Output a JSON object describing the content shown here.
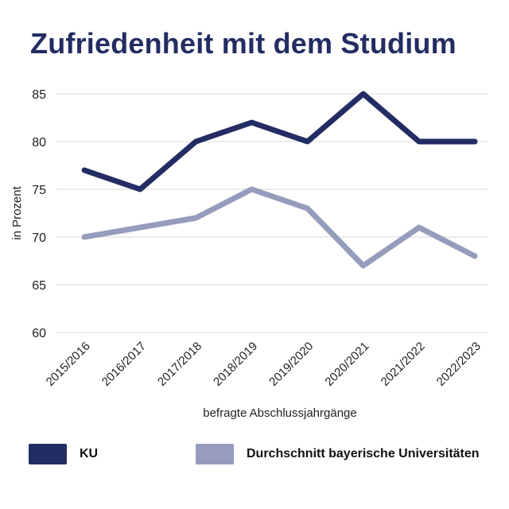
{
  "title": "Zufriedenheit mit dem Studium",
  "colors": {
    "ku": "#232d63",
    "avg": "#969cbb",
    "grid": "#d8d8d8",
    "text": "#222222"
  },
  "legend": {
    "ku": "KU",
    "avg": "Durchschnitt bayerische Universitäten"
  },
  "chart_data": {
    "type": "line",
    "title": "Zufriedenheit mit dem Studium",
    "xlabel": "befragte Abschlussjahrgänge",
    "ylabel": "in Prozent",
    "ylim": [
      60,
      85
    ],
    "yticks": [
      60,
      65,
      70,
      75,
      80,
      85
    ],
    "grid": true,
    "legend_position": "bottom",
    "categories": [
      "2015/2016",
      "2016/2017",
      "2017/2018",
      "2018/2019",
      "2019/2020",
      "2020/2021",
      "2021/2022",
      "2022/2023"
    ],
    "series": [
      {
        "name": "KU",
        "color": "#232d63",
        "values": [
          77,
          75,
          80,
          82,
          80,
          85,
          80,
          80
        ]
      },
      {
        "name": "Durchschnitt bayerische Universitäten",
        "color": "#969cbb",
        "values": [
          70,
          71,
          72,
          75,
          73,
          67,
          71,
          68
        ]
      }
    ]
  }
}
